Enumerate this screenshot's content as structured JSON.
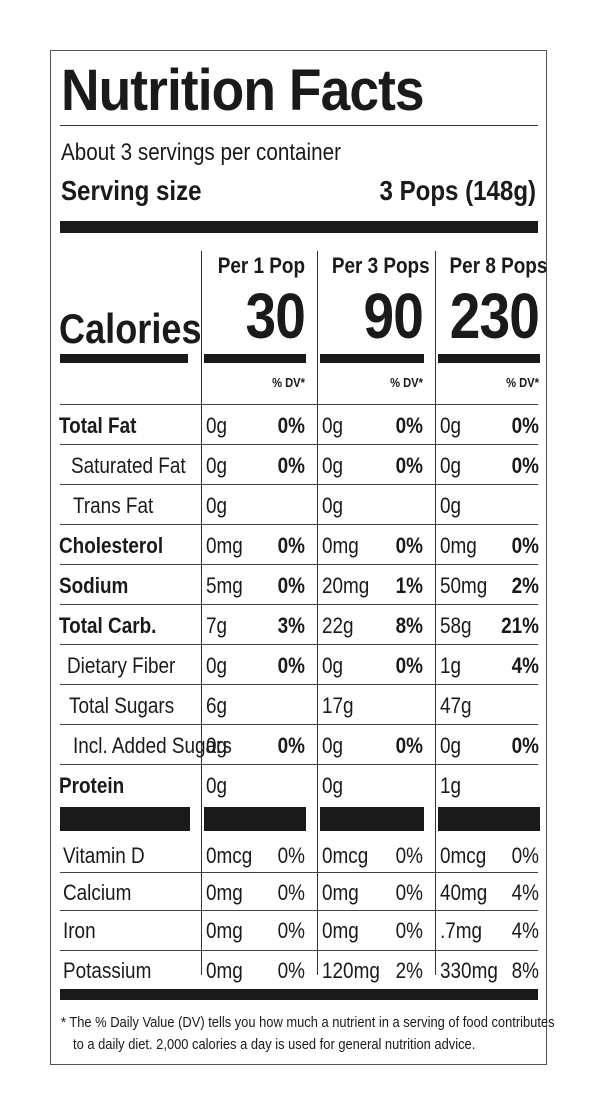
{
  "title": "Nutrition Facts",
  "servings_per_container": "About 3 servings per container",
  "serving_size_label": "Serving size",
  "serving_size_value": "3 Pops (148g)",
  "calories_label": "Calories",
  "columns": [
    {
      "heading": "Per 1 Pop",
      "calories": "30",
      "dv_label": "% DV*"
    },
    {
      "heading": "Per 3 Pops",
      "calories": "90",
      "dv_label": "% DV*"
    },
    {
      "heading": "Per 8 Pops",
      "calories": "230",
      "dv_label": "% DV*"
    }
  ],
  "nutrients": [
    {
      "name": "Total Fat",
      "bold": true,
      "values": [
        {
          "amt": "0g",
          "pct": "0%"
        },
        {
          "amt": "0g",
          "pct": "0%"
        },
        {
          "amt": "0g",
          "pct": "0%"
        }
      ]
    },
    {
      "name": "Saturated Fat",
      "bold": false,
      "values": [
        {
          "amt": "0g",
          "pct": "0%"
        },
        {
          "amt": "0g",
          "pct": "0%"
        },
        {
          "amt": "0g",
          "pct": "0%"
        }
      ]
    },
    {
      "name": "Trans Fat",
      "bold": false,
      "values": [
        {
          "amt": "0g",
          "pct": ""
        },
        {
          "amt": "0g",
          "pct": ""
        },
        {
          "amt": "0g",
          "pct": ""
        }
      ]
    },
    {
      "name": "Cholesterol",
      "bold": true,
      "values": [
        {
          "amt": "0mg",
          "pct": "0%"
        },
        {
          "amt": "0mg",
          "pct": "0%"
        },
        {
          "amt": "0mg",
          "pct": "0%"
        }
      ]
    },
    {
      "name": "Sodium",
      "bold": true,
      "values": [
        {
          "amt": "5mg",
          "pct": "0%"
        },
        {
          "amt": "20mg",
          "pct": "1%"
        },
        {
          "amt": "50mg",
          "pct": "2%"
        }
      ]
    },
    {
      "name": "Total Carb.",
      "bold": true,
      "values": [
        {
          "amt": "7g",
          "pct": "3%"
        },
        {
          "amt": "22g",
          "pct": "8%"
        },
        {
          "amt": "58g",
          "pct": "21%"
        }
      ]
    },
    {
      "name": "Dietary Fiber",
      "bold": false,
      "values": [
        {
          "amt": "0g",
          "pct": "0%"
        },
        {
          "amt": "0g",
          "pct": "0%"
        },
        {
          "amt": "1g",
          "pct": "4%"
        }
      ]
    },
    {
      "name": "Total Sugars",
      "bold": false,
      "values": [
        {
          "amt": "6g",
          "pct": ""
        },
        {
          "amt": "17g",
          "pct": ""
        },
        {
          "amt": "47g",
          "pct": ""
        }
      ]
    },
    {
      "name": "Incl. Added Sugars",
      "bold": false,
      "values": [
        {
          "amt": "0g",
          "pct": "0%"
        },
        {
          "amt": "0g",
          "pct": "0%"
        },
        {
          "amt": "0g",
          "pct": "0%"
        }
      ]
    },
    {
      "name": "Protein",
      "bold": true,
      "values": [
        {
          "amt": "0g",
          "pct": ""
        },
        {
          "amt": "0g",
          "pct": ""
        },
        {
          "amt": "1g",
          "pct": ""
        }
      ]
    }
  ],
  "vitamins": [
    {
      "name": "Vitamin D",
      "values": [
        {
          "amt": "0mcg",
          "pct": "0%"
        },
        {
          "amt": "0mcg",
          "pct": "0%"
        },
        {
          "amt": "0mcg",
          "pct": "0%"
        }
      ]
    },
    {
      "name": "Calcium",
      "values": [
        {
          "amt": "0mg",
          "pct": "0%"
        },
        {
          "amt": "0mg",
          "pct": "0%"
        },
        {
          "amt": "40mg",
          "pct": "4%"
        }
      ]
    },
    {
      "name": "Iron",
      "values": [
        {
          "amt": "0mg",
          "pct": "0%"
        },
        {
          "amt": "0mg",
          "pct": "0%"
        },
        {
          "amt": ".7mg",
          "pct": "4%"
        }
      ]
    },
    {
      "name": "Potassium",
      "values": [
        {
          "amt": "0mg",
          "pct": "0%"
        },
        {
          "amt": "120mg",
          "pct": "2%"
        },
        {
          "amt": "330mg",
          "pct": "8%"
        }
      ]
    }
  ],
  "footnote_line1": "* The % Daily Value (DV) tells you how much a nutrient in a serving of food contributes",
  "footnote_line2": "to a daily diet. 2,000 calories a day is used for general nutrition advice."
}
